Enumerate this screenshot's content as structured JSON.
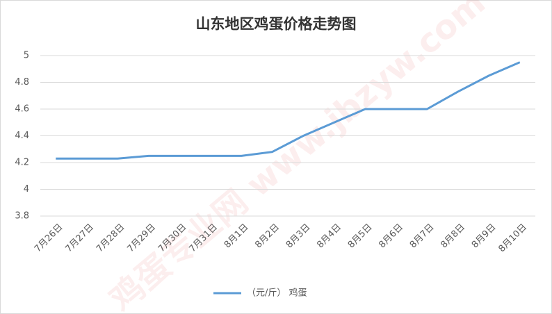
{
  "chart_data": {
    "type": "line",
    "title": "山东地区鸡蛋价格走势图",
    "watermark": "鸡蛋专业网 www.jbzyw.com",
    "categories": [
      "7月26日",
      "7月27日",
      "7月28日",
      "7月29日",
      "7月30日",
      "7月31日",
      "8月1日",
      "8月2日",
      "8月3日",
      "8月4日",
      "8月5日",
      "8月6日",
      "8月7日",
      "8月8日",
      "8月9日",
      "8月10日"
    ],
    "series": [
      {
        "name": "（元/斤） 鸡蛋",
        "color": "#5b9bd5",
        "values": [
          4.23,
          4.23,
          4.23,
          4.25,
          4.25,
          4.25,
          4.25,
          4.28,
          4.4,
          4.5,
          4.6,
          4.6,
          4.6,
          4.73,
          4.85,
          4.95
        ]
      }
    ],
    "ylim": [
      3.8,
      5
    ],
    "yticks": [
      3.8,
      4,
      4.2,
      4.4,
      4.6,
      4.8,
      5
    ],
    "grid": true,
    "legend": "bottom"
  }
}
